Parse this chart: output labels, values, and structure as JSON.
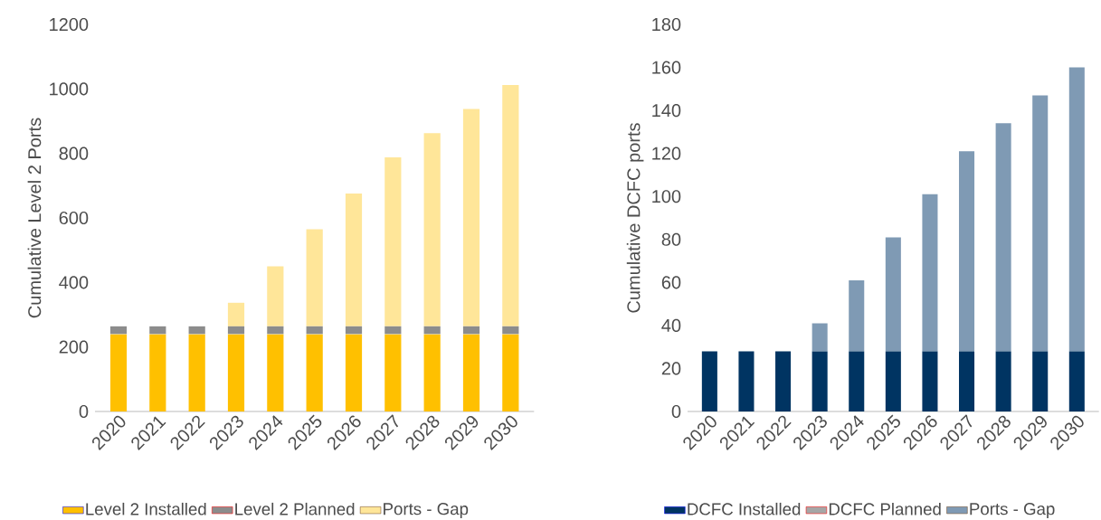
{
  "chart_data": [
    {
      "type": "bar",
      "stacked": true,
      "ylabel": "Cumulative  Level 2 Ports",
      "categories": [
        "2020",
        "2021",
        "2022",
        "2023",
        "2024",
        "2025",
        "2026",
        "2027",
        "2028",
        "2029",
        "2030"
      ],
      "ylim": [
        0,
        1200
      ],
      "yticks": [
        0,
        200,
        400,
        600,
        800,
        1000,
        1200
      ],
      "legend": "bottom",
      "series": [
        {
          "name": "Level 2 Installed",
          "color": "#ffc000",
          "values": [
            240,
            240,
            240,
            240,
            240,
            240,
            240,
            240,
            240,
            240,
            240
          ]
        },
        {
          "name": "Level 2 Planned",
          "color": "#8c8c8c",
          "values": [
            24,
            24,
            24,
            24,
            24,
            24,
            24,
            24,
            24,
            24,
            24
          ]
        },
        {
          "name": "Ports - Gap",
          "color": "#ffe699",
          "values": [
            0,
            0,
            0,
            73,
            186,
            301,
            412,
            524,
            599,
            674,
            748
          ]
        }
      ]
    },
    {
      "type": "bar",
      "stacked": true,
      "ylabel": "Cumulative DCFC ports",
      "categories": [
        "2020",
        "2021",
        "2022",
        "2023",
        "2024",
        "2025",
        "2026",
        "2027",
        "2028",
        "2029",
        "2030"
      ],
      "ylim": [
        0,
        180
      ],
      "yticks": [
        0,
        20,
        40,
        60,
        80,
        100,
        120,
        140,
        160,
        180
      ],
      "legend": "bottom",
      "series": [
        {
          "name": "DCFC Installed",
          "color": "#003462",
          "values": [
            28,
            28,
            28,
            28,
            28,
            28,
            28,
            28,
            28,
            28,
            28
          ]
        },
        {
          "name": "DCFC Planned",
          "color": "#a6a6a6",
          "values": [
            0,
            0,
            0,
            0,
            0,
            0,
            0,
            0,
            0,
            0,
            0
          ]
        },
        {
          "name": "Ports - Gap",
          "color": "#7f9ab4",
          "values": [
            0,
            0,
            0,
            13,
            33,
            53,
            73,
            93,
            106,
            119,
            132
          ]
        }
      ]
    }
  ]
}
